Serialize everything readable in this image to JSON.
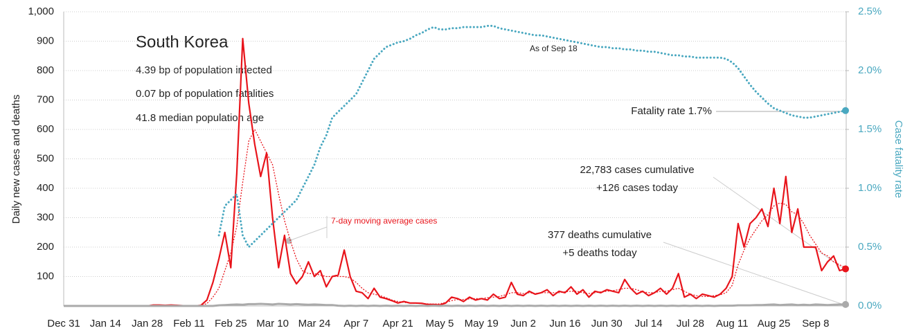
{
  "chart_data": {
    "type": "line",
    "annotations": {
      "title": "South Korea",
      "line1": "4.39 bp of population infected",
      "line2": "0.07 bp of population fatalities",
      "line3": "41.8 median population age",
      "asof": "As of Sep 18",
      "fatality": "Fatality rate 1.7%",
      "cases1": "22,783 cases cumulative",
      "cases2": "+126 cases today",
      "deaths1": "377 deaths cumulative",
      "deaths2": "+5 deaths today"
    },
    "ylabel": "Daily new cases and deaths",
    "y2label": "Case fatality rate",
    "categories": [
      "Dec 31",
      null,
      null,
      null,
      null,
      null,
      null,
      "Jan 14",
      null,
      null,
      null,
      null,
      null,
      null,
      "Jan 28",
      null,
      null,
      null,
      null,
      null,
      null,
      "Feb 11",
      null,
      null,
      null,
      null,
      null,
      null,
      "Feb 25",
      null,
      null,
      null,
      null,
      null,
      null,
      "Mar 10",
      null,
      null,
      null,
      null,
      null,
      null,
      "Mar 24",
      null,
      null,
      null,
      null,
      null,
      null,
      "Apr 7",
      null,
      null,
      null,
      null,
      null,
      null,
      "Apr 21",
      null,
      null,
      null,
      null,
      null,
      null,
      "May 5",
      null,
      null,
      null,
      null,
      null,
      null,
      "May 19",
      null,
      null,
      null,
      null,
      null,
      null,
      "Jun 2",
      null,
      null,
      null,
      null,
      null,
      null,
      "Jun 16",
      null,
      null,
      null,
      null,
      null,
      null,
      "Jun 30",
      null,
      null,
      null,
      null,
      null,
      null,
      "Jul 14",
      null,
      null,
      null,
      null,
      null,
      null,
      "Jul 28",
      null,
      null,
      null,
      null,
      null,
      null,
      "Aug 11",
      null,
      null,
      null,
      null,
      null,
      null,
      "Aug 25",
      null,
      null,
      null,
      null,
      null,
      null,
      "Sep 8",
      null,
      null,
      null,
      null,
      null
    ],
    "series": [
      {
        "color": "#e8141b",
        "style": "solid",
        "axis": "y",
        "values": [
          0,
          0,
          0,
          0,
          0,
          0,
          0,
          0,
          0,
          0,
          0,
          0,
          0,
          0,
          0,
          3,
          3,
          2,
          3,
          2,
          1,
          0,
          0,
          2,
          20,
          80,
          160,
          250,
          130,
          450,
          909,
          690,
          550,
          440,
          520,
          300,
          130,
          240,
          110,
          75,
          100,
          150,
          100,
          120,
          65,
          100,
          105,
          190,
          100,
          50,
          45,
          25,
          60,
          30,
          25,
          18,
          10,
          15,
          10,
          10,
          9,
          5,
          5,
          3,
          10,
          30,
          25,
          15,
          30,
          20,
          25,
          20,
          40,
          25,
          30,
          80,
          40,
          35,
          50,
          40,
          45,
          55,
          35,
          50,
          45,
          65,
          40,
          55,
          30,
          50,
          45,
          55,
          50,
          45,
          90,
          60,
          40,
          50,
          35,
          45,
          60,
          40,
          60,
          110,
          30,
          40,
          25,
          40,
          35,
          30,
          40,
          60,
          100,
          280,
          200,
          280,
          300,
          330,
          270,
          400,
          280,
          440,
          250,
          330,
          200,
          200,
          200,
          120,
          150,
          170,
          120,
          126
        ]
      },
      {
        "name": "7-day moving average cases",
        "color": "#e8141b",
        "style": "dotted",
        "axis": "y",
        "values": [
          0,
          0,
          0,
          0,
          0,
          0,
          0,
          0,
          0,
          0,
          0,
          0,
          0,
          0,
          1,
          2,
          2,
          2,
          2,
          2,
          2,
          1,
          1,
          2,
          8,
          30,
          60,
          120,
          180,
          270,
          420,
          560,
          600,
          560,
          520,
          480,
          380,
          290,
          220,
          160,
          120,
          110,
          110,
          105,
          100,
          100,
          100,
          100,
          95,
          80,
          60,
          45,
          40,
          35,
          28,
          20,
          15,
          12,
          10,
          9,
          8,
          7,
          6,
          7,
          12,
          18,
          22,
          22,
          24,
          25,
          25,
          28,
          30,
          32,
          38,
          45,
          45,
          42,
          45,
          42,
          45,
          45,
          45,
          45,
          48,
          50,
          50,
          45,
          42,
          45,
          48,
          50,
          52,
          55,
          60,
          60,
          55,
          48,
          45,
          45,
          50,
          50,
          55,
          60,
          50,
          40,
          35,
          32,
          32,
          35,
          38,
          45,
          70,
          140,
          190,
          230,
          260,
          290,
          310,
          340,
          350,
          345,
          320,
          310,
          280,
          240,
          210,
          180,
          170,
          150,
          140,
          130
        ]
      },
      {
        "color": "#aaaaaa",
        "style": "solid",
        "axis": "y",
        "values": [
          0,
          0,
          0,
          0,
          0,
          0,
          0,
          0,
          0,
          0,
          0,
          0,
          0,
          0,
          0,
          0,
          0,
          0,
          0,
          0,
          0,
          0,
          0,
          0,
          0,
          0,
          2,
          3,
          4,
          5,
          4,
          6,
          6,
          7,
          6,
          5,
          7,
          6,
          5,
          6,
          5,
          4,
          5,
          4,
          3,
          3,
          1,
          0,
          1,
          0,
          1,
          0,
          1,
          0,
          1,
          0,
          1,
          0,
          1,
          0,
          1,
          0,
          1,
          0,
          1,
          0,
          1,
          0,
          1,
          0,
          1,
          0,
          1,
          0,
          1,
          0,
          1,
          0,
          1,
          0,
          1,
          0,
          1,
          0,
          1,
          0,
          1,
          0,
          1,
          0,
          1,
          0,
          1,
          0,
          1,
          0,
          1,
          0,
          1,
          0,
          1,
          0,
          1,
          0,
          1,
          0,
          1,
          0,
          1,
          0,
          1,
          1,
          1,
          2,
          2,
          2,
          3,
          3,
          4,
          5,
          3,
          4,
          5,
          3,
          4,
          3,
          5,
          4,
          3,
          4,
          5,
          5
        ]
      },
      {
        "color": "#4aa8c0",
        "style": "dotted",
        "axis": "y2",
        "values": [
          null,
          null,
          null,
          null,
          null,
          null,
          null,
          null,
          null,
          null,
          null,
          null,
          null,
          null,
          null,
          null,
          null,
          null,
          null,
          null,
          null,
          null,
          null,
          null,
          null,
          null,
          0.6,
          0.85,
          0.9,
          0.95,
          0.6,
          0.5,
          0.55,
          0.6,
          0.65,
          0.7,
          0.75,
          0.8,
          0.85,
          0.9,
          1.0,
          1.1,
          1.2,
          1.35,
          1.45,
          1.6,
          1.65,
          1.7,
          1.75,
          1.8,
          1.9,
          2.0,
          2.1,
          2.15,
          2.2,
          2.22,
          2.24,
          2.25,
          2.27,
          2.3,
          2.32,
          2.35,
          2.37,
          2.35,
          2.35,
          2.36,
          2.36,
          2.37,
          2.37,
          2.37,
          2.37,
          2.38,
          2.38,
          2.36,
          2.35,
          2.34,
          2.33,
          2.32,
          2.31,
          2.3,
          2.3,
          2.29,
          2.28,
          2.27,
          2.26,
          2.25,
          2.24,
          2.23,
          2.22,
          2.21,
          2.2,
          2.2,
          2.19,
          2.19,
          2.18,
          2.18,
          2.17,
          2.17,
          2.16,
          2.16,
          2.15,
          2.14,
          2.13,
          2.13,
          2.12,
          2.12,
          2.11,
          2.11,
          2.11,
          2.11,
          2.11,
          2.1,
          2.07,
          2.02,
          1.95,
          1.88,
          1.82,
          1.77,
          1.72,
          1.68,
          1.66,
          1.64,
          1.62,
          1.61,
          1.6,
          1.6,
          1.61,
          1.62,
          1.63,
          1.64,
          1.65,
          1.66
        ]
      }
    ],
    "ylim": [
      0,
      1000
    ],
    "yticks": [
      100,
      200,
      300,
      400,
      500,
      600,
      700,
      800,
      900,
      {
        "value": 1000,
        "label": "1,000"
      }
    ],
    "y2lim": [
      0,
      2.5
    ],
    "y2ticks": [
      {
        "value": 0,
        "label": "0.0%"
      },
      {
        "value": 0.5,
        "label": "0.5%"
      },
      {
        "value": 1.0,
        "label": "1.0%"
      },
      {
        "value": 1.5,
        "label": "1.5%"
      },
      {
        "value": 2.0,
        "label": "2.0%"
      },
      {
        "value": 2.5,
        "label": "2.5%"
      }
    ],
    "grid": true
  }
}
